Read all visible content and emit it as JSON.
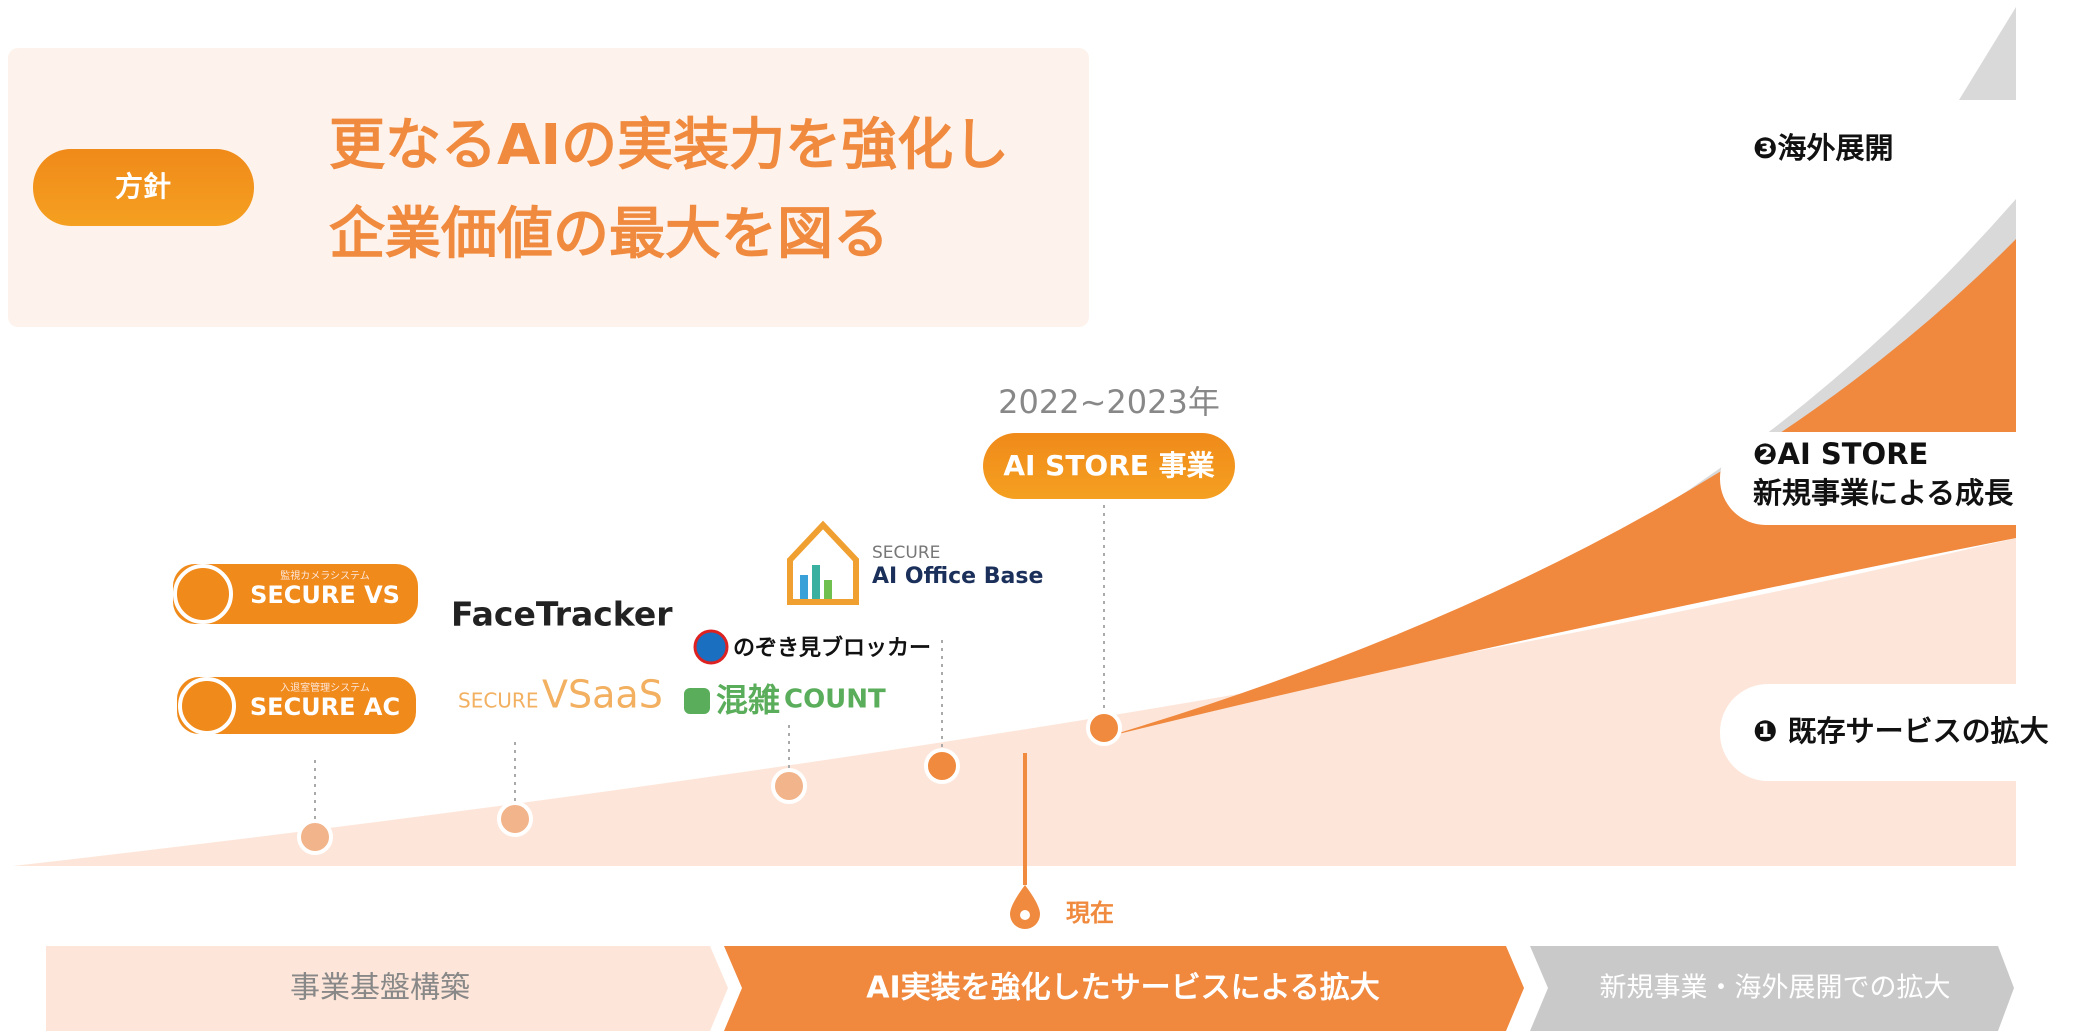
{
  "policy": {
    "label": "方針",
    "headline": [
      "更なるAIの実装力を強化し",
      "企業価値の最大を図る"
    ]
  },
  "milestone": {
    "period": "2022~2023年",
    "label": "AI STORE 事業"
  },
  "products": {
    "secure_vs": {
      "caption": "監視カメラシステム",
      "name": "SECURE VS"
    },
    "secure_ac": {
      "caption": "入退室管理システム",
      "name": "SECURE AC"
    },
    "facetracker": "FaceTracker",
    "vsaas": {
      "prefix": "SECURE",
      "name": "VSaaS"
    },
    "nozokimi": "のぞき見ブロッカー",
    "konzatsu": {
      "name": "混雑",
      "suffix": "COUNT"
    },
    "office_base": {
      "prefix": "SECURE",
      "name": "AI Office Base"
    }
  },
  "now": "現在",
  "growth": {
    "overseas": "❸海外展開",
    "ai_store": [
      "❷AI STORE",
      "新規事業による成長"
    ],
    "existing": "❶ 既存サービスの拡大"
  },
  "phases": [
    "事業基盤構築",
    "AI実装を強化したサービスによる拡大",
    "新規事業・海外展開での拡大"
  ]
}
